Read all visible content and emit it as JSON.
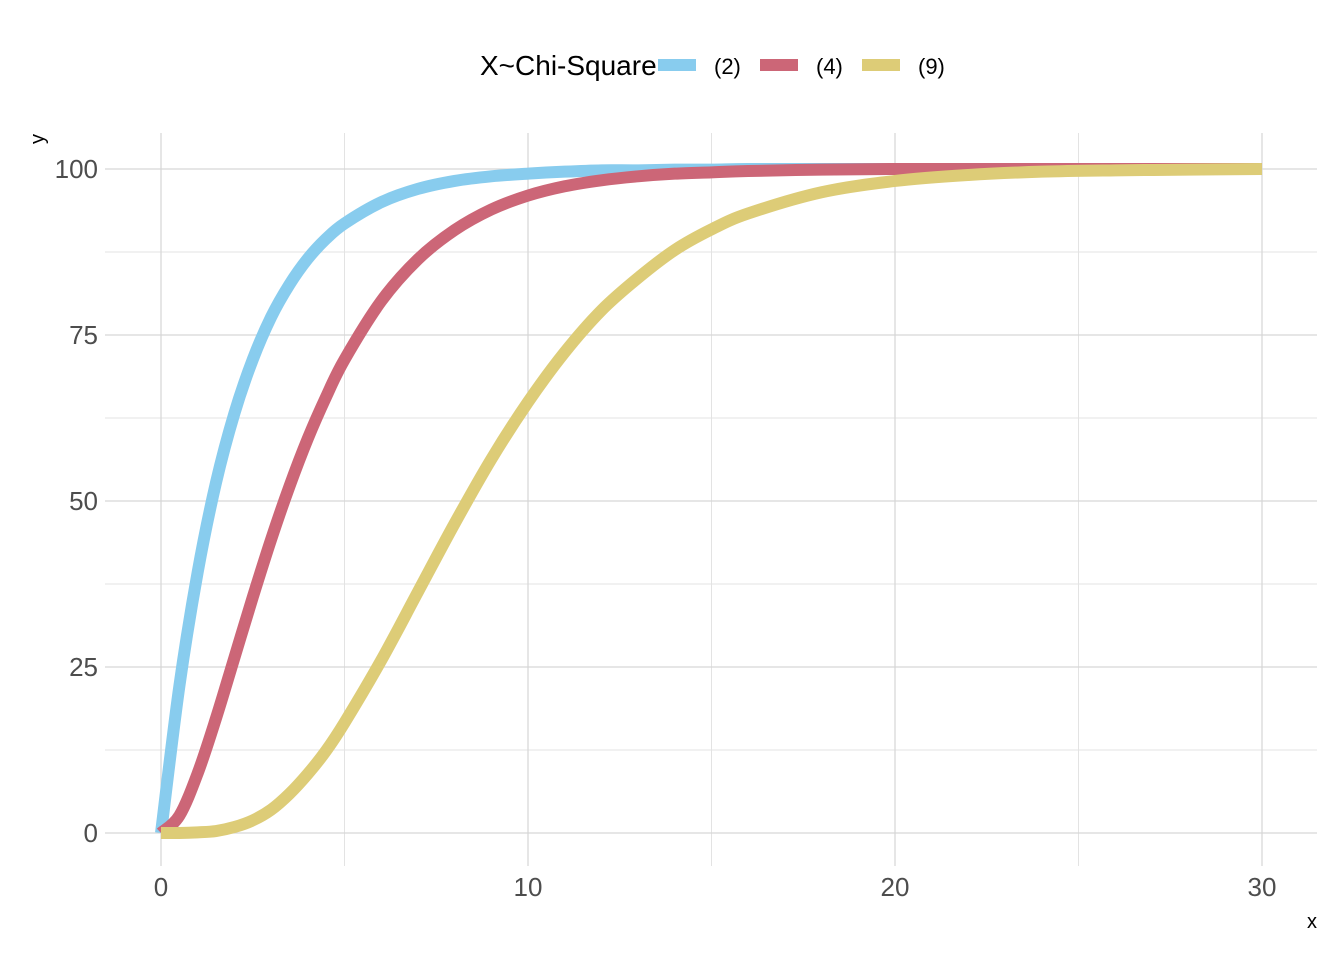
{
  "chart_data": {
    "type": "line",
    "legend": {
      "title": "X~Chi-Square",
      "position": "top"
    },
    "xlabel": "x",
    "ylabel": "y",
    "xlim": [
      0,
      30
    ],
    "ylim": [
      0,
      100
    ],
    "x_ticks": [
      0,
      10,
      20,
      30
    ],
    "y_ticks": [
      0,
      25,
      50,
      75,
      100
    ],
    "x_tick_labels": [
      "0",
      "10",
      "20",
      "30"
    ],
    "y_tick_labels": [
      "0",
      "25",
      "50",
      "75",
      "100"
    ],
    "grid": true,
    "x": [
      0,
      0.5,
      1,
      1.5,
      2,
      2.5,
      3,
      3.5,
      4,
      4.5,
      5,
      6,
      7,
      8,
      9,
      10,
      11,
      12,
      13,
      14,
      15,
      16,
      18,
      20,
      22,
      24,
      26,
      28,
      30
    ],
    "series": [
      {
        "name": "(2)",
        "color": "#88ccee",
        "values": [
          0,
          22.1,
          39.3,
          52.8,
          63.2,
          71.3,
          77.7,
          82.6,
          86.5,
          89.5,
          91.8,
          95.0,
          97.0,
          98.2,
          98.9,
          99.3,
          99.6,
          99.8,
          99.8,
          99.9,
          99.9,
          100,
          100,
          100,
          100,
          100,
          100,
          100,
          100
        ]
      },
      {
        "name": "(4)",
        "color": "#cc6677",
        "values": [
          0,
          2.6,
          9.0,
          17.3,
          26.4,
          35.5,
          44.2,
          52.2,
          59.4,
          65.7,
          71.3,
          80.1,
          86.4,
          90.8,
          93.9,
          96.0,
          97.4,
          98.3,
          98.9,
          99.3,
          99.5,
          99.7,
          99.9,
          100,
          100,
          100,
          100,
          100,
          100
        ]
      },
      {
        "name": "(9)",
        "color": "#ddcc77",
        "values": [
          0,
          0,
          0.1,
          0.3,
          0.9,
          1.9,
          3.5,
          5.9,
          8.9,
          12.4,
          16.6,
          26.0,
          36.3,
          46.6,
          56.3,
          64.9,
          72.4,
          78.7,
          83.6,
          87.8,
          90.9,
          93.3,
          96.5,
          98.2,
          99.1,
          99.6,
          99.8,
          99.9,
          100
        ]
      }
    ]
  }
}
